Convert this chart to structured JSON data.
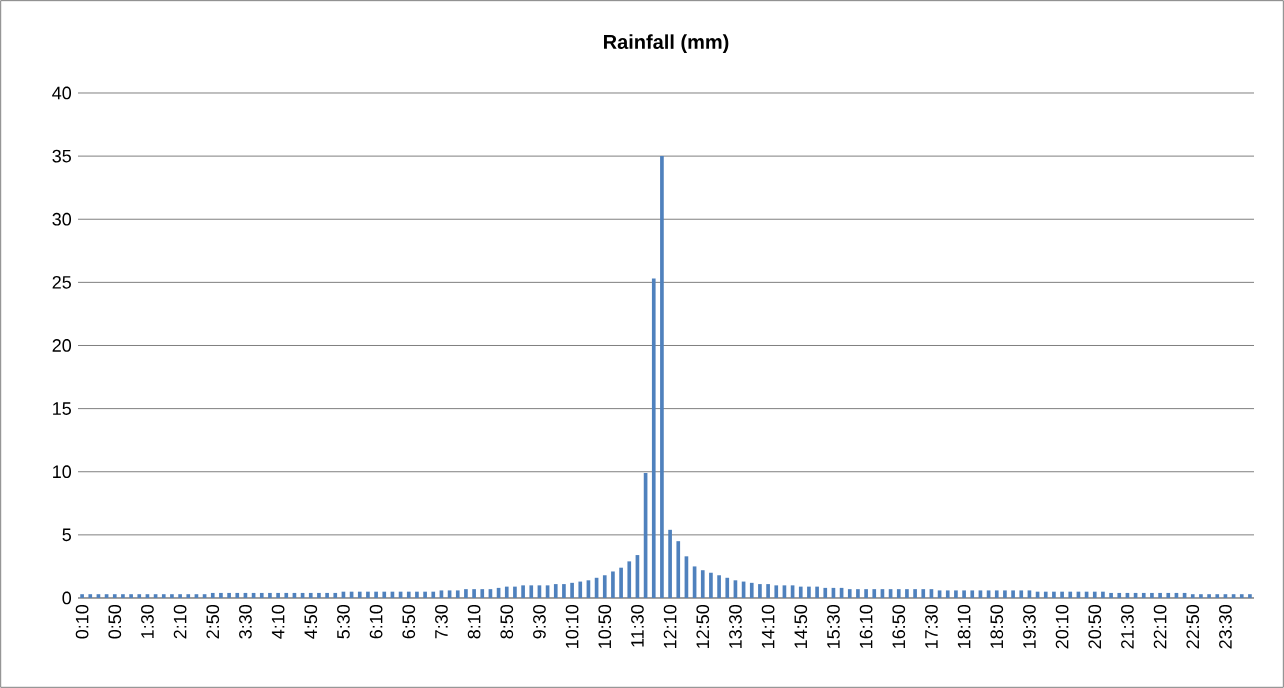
{
  "chart_data": {
    "type": "bar",
    "title": "Rainfall (mm)",
    "categories": [
      "0:10",
      null,
      null,
      null,
      "0:50",
      null,
      null,
      null,
      "1:30",
      null,
      null,
      null,
      "2:10",
      null,
      null,
      null,
      "2:50",
      null,
      null,
      null,
      "3:30",
      null,
      null,
      null,
      "4:10",
      null,
      null,
      null,
      "4:50",
      null,
      null,
      null,
      "5:30",
      null,
      null,
      null,
      "6:10",
      null,
      null,
      null,
      "6:50",
      null,
      null,
      null,
      "7:30",
      null,
      null,
      null,
      "8:10",
      null,
      null,
      null,
      "8:50",
      null,
      null,
      null,
      "9:30",
      null,
      null,
      null,
      "10:10",
      null,
      null,
      null,
      "10:50",
      null,
      null,
      null,
      "11:30",
      null,
      null,
      null,
      "12:10",
      null,
      null,
      null,
      "12:50",
      null,
      null,
      null,
      "13:30",
      null,
      null,
      null,
      "14:10",
      null,
      null,
      null,
      "14:50",
      null,
      null,
      null,
      "15:30",
      null,
      null,
      null,
      "16:10",
      null,
      null,
      null,
      "16:50",
      null,
      null,
      null,
      "17:30",
      null,
      null,
      null,
      "18:10",
      null,
      null,
      null,
      "18:50",
      null,
      null,
      null,
      "19:30",
      null,
      null,
      null,
      "20:10",
      null,
      null,
      null,
      "20:50",
      null,
      null,
      null,
      "21:30",
      null,
      null,
      null,
      "22:10",
      null,
      null,
      null,
      "22:50",
      null,
      null,
      null,
      "23:30",
      null,
      null,
      null
    ],
    "values": [
      0.3,
      0.3,
      0.3,
      0.3,
      0.3,
      0.3,
      0.3,
      0.3,
      0.3,
      0.3,
      0.3,
      0.3,
      0.3,
      0.3,
      0.3,
      0.3,
      0.4,
      0.4,
      0.4,
      0.4,
      0.4,
      0.4,
      0.4,
      0.4,
      0.4,
      0.4,
      0.4,
      0.4,
      0.4,
      0.4,
      0.4,
      0.4,
      0.5,
      0.5,
      0.5,
      0.5,
      0.5,
      0.5,
      0.5,
      0.5,
      0.5,
      0.5,
      0.5,
      0.5,
      0.6,
      0.6,
      0.6,
      0.7,
      0.7,
      0.7,
      0.7,
      0.8,
      0.9,
      0.9,
      1.0,
      1.0,
      1.0,
      1.0,
      1.1,
      1.1,
      1.2,
      1.3,
      1.4,
      1.6,
      1.8,
      2.1,
      2.4,
      2.9,
      3.4,
      9.9,
      25.3,
      35,
      5.4,
      4.5,
      3.3,
      2.5,
      2.2,
      2.0,
      1.8,
      1.6,
      1.4,
      1.3,
      1.2,
      1.1,
      1.1,
      1.0,
      1.0,
      1.0,
      0.9,
      0.9,
      0.9,
      0.8,
      0.8,
      0.8,
      0.7,
      0.7,
      0.7,
      0.7,
      0.7,
      0.7,
      0.7,
      0.7,
      0.7,
      0.7,
      0.7,
      0.6,
      0.6,
      0.6,
      0.6,
      0.6,
      0.6,
      0.6,
      0.6,
      0.6,
      0.6,
      0.6,
      0.6,
      0.5,
      0.5,
      0.5,
      0.5,
      0.5,
      0.5,
      0.5,
      0.5,
      0.5,
      0.4,
      0.4,
      0.4,
      0.4,
      0.4,
      0.4,
      0.4,
      0.4,
      0.4,
      0.4,
      0.3,
      0.3,
      0.3,
      0.3,
      0.3,
      0.3,
      0.3,
      0.3
    ],
    "color": "#4f81bd",
    "ylim": [
      0,
      40
    ],
    "yticks": [
      0,
      5,
      10,
      15,
      20,
      25,
      30,
      35,
      40
    ],
    "grid": "y"
  }
}
